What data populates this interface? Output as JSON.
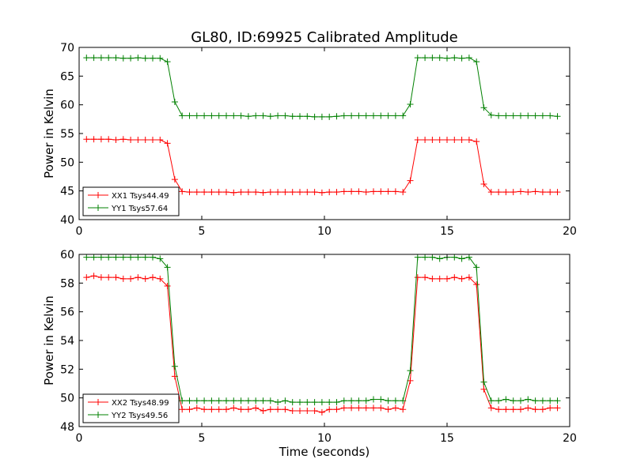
{
  "figure_title": "GL80, ID:69925 Calibrated Amplitude",
  "chart_data": [
    {
      "type": "line",
      "title": "GL80, ID:69925 Calibrated Amplitude",
      "xlabel": "",
      "ylabel": "Power in Kelvin",
      "xlim": [
        0,
        20
      ],
      "ylim": [
        40,
        70
      ],
      "xticks": [
        0,
        5,
        10,
        15,
        20
      ],
      "yticks": [
        40,
        45,
        50,
        55,
        60,
        65,
        70
      ],
      "grid": false,
      "legend_position": "bottom-left",
      "x": [
        0.3,
        0.6,
        0.9,
        1.2,
        1.5,
        1.8,
        2.1,
        2.4,
        2.7,
        3.0,
        3.3,
        3.6,
        3.9,
        4.2,
        4.5,
        4.8,
        5.1,
        5.4,
        5.7,
        6.0,
        6.3,
        6.6,
        6.9,
        7.2,
        7.5,
        7.8,
        8.1,
        8.4,
        8.7,
        9.0,
        9.3,
        9.6,
        9.9,
        10.2,
        10.5,
        10.8,
        11.1,
        11.4,
        11.7,
        12.0,
        12.3,
        12.6,
        12.9,
        13.2,
        13.5,
        13.8,
        14.1,
        14.4,
        14.7,
        15.0,
        15.3,
        15.6,
        15.9,
        16.2,
        16.5,
        16.8,
        17.1,
        17.4,
        17.7,
        18.0,
        18.3,
        18.6,
        18.9,
        19.2,
        19.5
      ],
      "series": [
        {
          "name": "XX1 Tsys44.49",
          "color": "#ff0000",
          "values": [
            54.0,
            54.0,
            54.0,
            54.0,
            53.9,
            54.0,
            53.9,
            53.9,
            53.9,
            53.9,
            53.9,
            53.3,
            47.0,
            44.9,
            44.8,
            44.8,
            44.8,
            44.8,
            44.8,
            44.8,
            44.7,
            44.8,
            44.8,
            44.8,
            44.7,
            44.8,
            44.8,
            44.8,
            44.8,
            44.8,
            44.8,
            44.8,
            44.7,
            44.8,
            44.8,
            44.9,
            44.9,
            44.9,
            44.8,
            44.9,
            44.9,
            44.9,
            44.9,
            44.8,
            46.8,
            53.9,
            53.9,
            53.9,
            53.9,
            53.9,
            53.9,
            53.9,
            53.9,
            53.6,
            46.2,
            44.8,
            44.8,
            44.8,
            44.8,
            44.9,
            44.8,
            44.9,
            44.8,
            44.8,
            44.8
          ]
        },
        {
          "name": "YY1 Tsys57.64",
          "color": "#008000",
          "values": [
            68.2,
            68.2,
            68.2,
            68.2,
            68.2,
            68.1,
            68.1,
            68.2,
            68.1,
            68.1,
            68.1,
            67.5,
            60.5,
            58.1,
            58.1,
            58.1,
            58.1,
            58.1,
            58.1,
            58.1,
            58.1,
            58.1,
            58.0,
            58.1,
            58.1,
            58.0,
            58.1,
            58.1,
            58.0,
            58.0,
            58.0,
            57.9,
            57.9,
            57.9,
            58.0,
            58.1,
            58.1,
            58.1,
            58.1,
            58.1,
            58.1,
            58.1,
            58.1,
            58.1,
            60.1,
            68.2,
            68.2,
            68.2,
            68.2,
            68.1,
            68.2,
            68.1,
            68.2,
            67.5,
            59.5,
            58.2,
            58.1,
            58.1,
            58.1,
            58.1,
            58.1,
            58.1,
            58.1,
            58.1,
            58.0
          ]
        }
      ]
    },
    {
      "type": "line",
      "title": "",
      "xlabel": "Time (seconds)",
      "ylabel": "Power in Kelvin",
      "xlim": [
        0,
        20
      ],
      "ylim": [
        48,
        60
      ],
      "xticks": [
        0,
        5,
        10,
        15,
        20
      ],
      "yticks": [
        48,
        50,
        52,
        54,
        56,
        58,
        60
      ],
      "grid": false,
      "legend_position": "bottom-left",
      "x": [
        0.3,
        0.6,
        0.9,
        1.2,
        1.5,
        1.8,
        2.1,
        2.4,
        2.7,
        3.0,
        3.3,
        3.6,
        3.9,
        4.2,
        4.5,
        4.8,
        5.1,
        5.4,
        5.7,
        6.0,
        6.3,
        6.6,
        6.9,
        7.2,
        7.5,
        7.8,
        8.1,
        8.4,
        8.7,
        9.0,
        9.3,
        9.6,
        9.9,
        10.2,
        10.5,
        10.8,
        11.1,
        11.4,
        11.7,
        12.0,
        12.3,
        12.6,
        12.9,
        13.2,
        13.5,
        13.8,
        14.1,
        14.4,
        14.7,
        15.0,
        15.3,
        15.6,
        15.9,
        16.2,
        16.5,
        16.8,
        17.1,
        17.4,
        17.7,
        18.0,
        18.3,
        18.6,
        18.9,
        19.2,
        19.5
      ],
      "series": [
        {
          "name": "XX2 Tsys48.99",
          "color": "#ff0000",
          "values": [
            58.4,
            58.5,
            58.4,
            58.4,
            58.4,
            58.3,
            58.3,
            58.4,
            58.3,
            58.4,
            58.3,
            57.8,
            51.5,
            49.2,
            49.2,
            49.3,
            49.2,
            49.2,
            49.2,
            49.2,
            49.3,
            49.2,
            49.2,
            49.3,
            49.1,
            49.2,
            49.2,
            49.2,
            49.1,
            49.1,
            49.1,
            49.1,
            49.0,
            49.2,
            49.2,
            49.3,
            49.3,
            49.3,
            49.3,
            49.3,
            49.3,
            49.2,
            49.3,
            49.2,
            51.2,
            58.4,
            58.4,
            58.3,
            58.3,
            58.3,
            58.4,
            58.3,
            58.4,
            57.9,
            50.6,
            49.3,
            49.2,
            49.2,
            49.2,
            49.2,
            49.3,
            49.2,
            49.2,
            49.3,
            49.3
          ]
        },
        {
          "name": "YY2 Tsys49.56",
          "color": "#008000",
          "values": [
            59.8,
            59.8,
            59.8,
            59.8,
            59.8,
            59.8,
            59.8,
            59.8,
            59.8,
            59.8,
            59.7,
            59.1,
            52.2,
            49.8,
            49.8,
            49.8,
            49.8,
            49.8,
            49.8,
            49.8,
            49.8,
            49.8,
            49.8,
            49.8,
            49.8,
            49.8,
            49.7,
            49.8,
            49.7,
            49.7,
            49.7,
            49.7,
            49.7,
            49.7,
            49.7,
            49.8,
            49.8,
            49.8,
            49.8,
            49.9,
            49.9,
            49.8,
            49.8,
            49.8,
            51.9,
            59.8,
            59.8,
            59.8,
            59.7,
            59.8,
            59.8,
            59.7,
            59.8,
            59.1,
            51.1,
            49.8,
            49.8,
            49.9,
            49.8,
            49.8,
            49.9,
            49.8,
            49.8,
            49.8,
            49.8
          ]
        }
      ]
    }
  ]
}
